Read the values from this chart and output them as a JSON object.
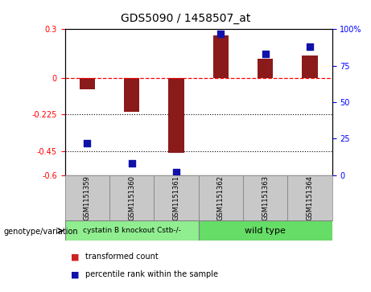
{
  "title": "GDS5090 / 1458507_at",
  "samples": [
    "GSM1151359",
    "GSM1151360",
    "GSM1151361",
    "GSM1151362",
    "GSM1151363",
    "GSM1151364"
  ],
  "transformed_count": [
    -0.07,
    -0.21,
    -0.46,
    0.26,
    0.12,
    0.14
  ],
  "percentile_rank": [
    22,
    8,
    2,
    97,
    83,
    88
  ],
  "group_labels": [
    "cystatin B knockout Cstb-/-",
    "wild type"
  ],
  "group_colors": [
    "#90EE90",
    "#66DD66"
  ],
  "group_spans": [
    3,
    3
  ],
  "ylim_left": [
    -0.6,
    0.3
  ],
  "ylim_right": [
    0,
    100
  ],
  "yticks_left": [
    0.3,
    0.0,
    -0.225,
    -0.45,
    -0.6
  ],
  "yticks_right": [
    100,
    75,
    50,
    25,
    0
  ],
  "ytick_labels_left": [
    "0.3",
    "0",
    "-0.225",
    "-0.45",
    "-0.6"
  ],
  "ytick_labels_right": [
    "100%",
    "75",
    "50",
    "25",
    "0"
  ],
  "hline_y": 0.0,
  "dotted_lines": [
    -0.225,
    -0.45
  ],
  "bar_color": "#8B1A1A",
  "dot_color": "#1111AA",
  "bar_width": 0.35,
  "dot_size": 30,
  "legend_items": [
    "transformed count",
    "percentile rank within the sample"
  ],
  "legend_colors": [
    "#CC2222",
    "#1111AA"
  ],
  "annotation_label": "genotype/variation",
  "sample_bg": "#C8C8C8",
  "plot_bg": "#FFFFFF"
}
